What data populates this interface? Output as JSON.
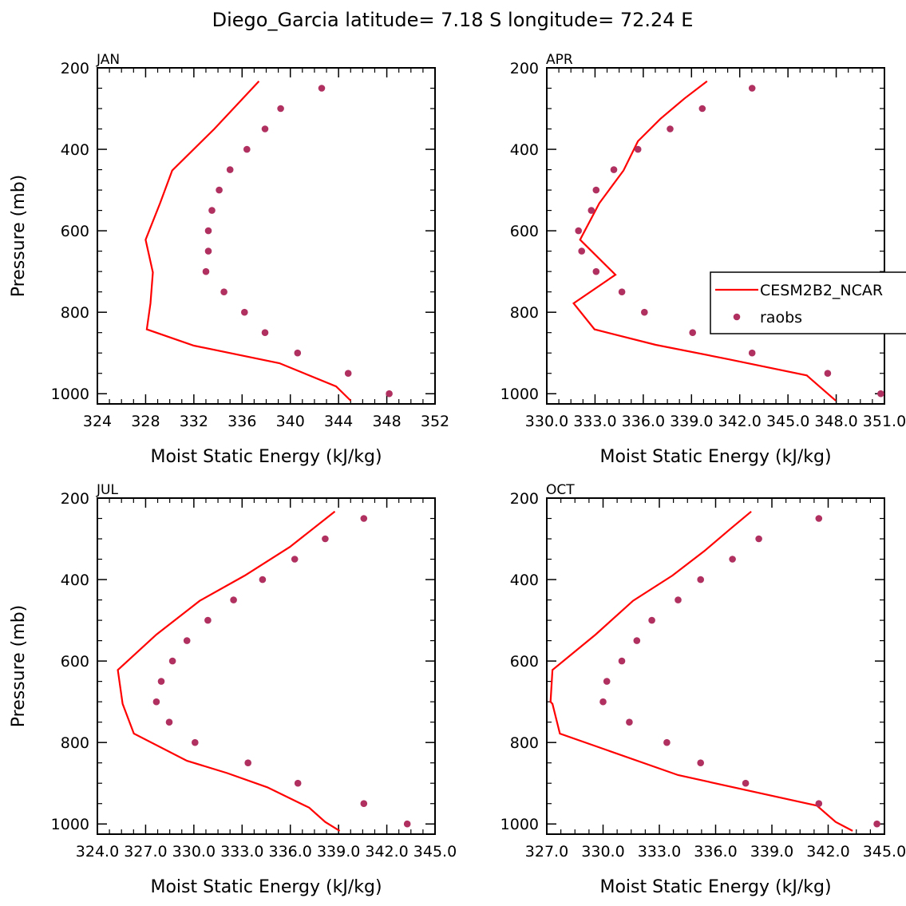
{
  "title": "Diego_Garcia  latitude= 7.18 S longitude= 72.24 E",
  "colors": {
    "model": "#ff0000",
    "obs": "#b03060",
    "axis": "#000000"
  },
  "legend": {
    "placement": "right, mid-height of APR panel",
    "entries": [
      "CESM2B2_NCAR",
      "raobs"
    ]
  },
  "chart_data": [
    {
      "type": "line",
      "panel": "JAN",
      "xlabel": "Moist Static Energy (kJ/kg)",
      "ylabel": "Pressure (mb)",
      "xlim": [
        324,
        352
      ],
      "ylim": [
        200,
        1025
      ],
      "y_inverted": true,
      "xticks": [
        324,
        328,
        332,
        336,
        340,
        344,
        348,
        352
      ],
      "xtick_labels": [
        "324",
        "328",
        "332",
        "336",
        "340",
        "344",
        "348",
        "352"
      ],
      "yticks": [
        200,
        400,
        600,
        800,
        1000
      ],
      "ytick_labels": [
        "200",
        "400",
        "600",
        "800",
        "1000"
      ],
      "series": [
        {
          "name": "CESM2B2_NCAR",
          "kind": "line",
          "x": [
            337.4,
            333.7,
            330.2,
            329.2,
            328.0,
            328.6,
            328.4,
            328.1,
            332.0,
            339.1,
            343.8,
            345.0
          ],
          "y": [
            233,
            350,
            452,
            532,
            622,
            702,
            778,
            842,
            882,
            925,
            982,
            1017
          ]
        },
        {
          "name": "raobs",
          "kind": "scatter",
          "x": [
            342.6,
            339.2,
            337.9,
            336.4,
            335.0,
            334.1,
            333.5,
            333.2,
            333.2,
            333.0,
            334.5,
            336.2,
            337.9,
            340.6,
            344.8,
            348.2
          ],
          "y": [
            250,
            300,
            350,
            400,
            450,
            500,
            550,
            600,
            650,
            700,
            750,
            800,
            850,
            900,
            950,
            1000
          ]
        }
      ]
    },
    {
      "type": "line",
      "panel": "APR",
      "xlabel": "Moist Static Energy (kJ/kg)",
      "ylabel": "",
      "xlim": [
        330.03,
        351.03
      ],
      "ylim": [
        200,
        1025
      ],
      "y_inverted": true,
      "xticks": [
        330.03,
        333.03,
        336.03,
        339.03,
        342.03,
        345.03,
        348.03,
        351.03
      ],
      "xtick_labels": [
        "330.0",
        "333.0",
        "336.0",
        "339.0",
        "342.0",
        "345.0",
        "348.0",
        "351.0"
      ],
      "yticks": [
        200,
        400,
        600,
        800,
        1000
      ],
      "ytick_labels": [
        "200",
        "400",
        "600",
        "800",
        "1000"
      ],
      "series": [
        {
          "name": "CESM2B2_NCAR",
          "kind": "line",
          "x": [
            340.0,
            338.6,
            337.1,
            335.7,
            334.8,
            333.3,
            332.1,
            334.3,
            331.7,
            333.0,
            336.8,
            341.3,
            346.2,
            348.0
          ],
          "y": [
            233,
            275,
            325,
            380,
            452,
            532,
            622,
            708,
            778,
            842,
            880,
            915,
            955,
            1017
          ]
        },
        {
          "name": "raobs",
          "kind": "scatter",
          "x": [
            342.8,
            339.7,
            337.7,
            335.7,
            334.2,
            333.1,
            332.8,
            332.0,
            332.2,
            333.1,
            334.7,
            336.1,
            339.1,
            342.8,
            347.5,
            350.8
          ],
          "y": [
            250,
            300,
            350,
            400,
            450,
            500,
            550,
            600,
            650,
            700,
            750,
            800,
            850,
            900,
            950,
            1000
          ]
        }
      ]
    },
    {
      "type": "line",
      "panel": "JUL",
      "xlabel": "Moist Static Energy (kJ/kg)",
      "ylabel": "Pressure (mb)",
      "xlim": [
        324.03,
        345.03
      ],
      "ylim": [
        200,
        1025
      ],
      "y_inverted": true,
      "xticks": [
        324.03,
        327.03,
        330.03,
        333.03,
        336.03,
        339.03,
        342.03,
        345.03
      ],
      "xtick_labels": [
        "324.0",
        "327.0",
        "330.0",
        "333.0",
        "336.0",
        "339.0",
        "342.0",
        "345.0"
      ],
      "yticks": [
        200,
        400,
        600,
        800,
        1000
      ],
      "ytick_labels": [
        "200",
        "400",
        "600",
        "800",
        "1000"
      ],
      "series": [
        {
          "name": "CESM2B2_NCAR",
          "kind": "line",
          "x": [
            338.8,
            336.0,
            333.2,
            330.4,
            327.7,
            325.3,
            325.6,
            326.3,
            329.6,
            332.1,
            334.6,
            337.2,
            338.2,
            339.1
          ],
          "y": [
            233,
            320,
            390,
            452,
            535,
            622,
            705,
            778,
            845,
            875,
            910,
            960,
            995,
            1017
          ]
        },
        {
          "name": "raobs",
          "kind": "scatter",
          "x": [
            340.6,
            338.2,
            336.3,
            334.3,
            332.5,
            330.9,
            329.6,
            328.7,
            328.0,
            327.7,
            328.5,
            330.1,
            333.4,
            336.5,
            340.6,
            343.3
          ],
          "y": [
            250,
            300,
            350,
            400,
            450,
            500,
            550,
            600,
            650,
            700,
            750,
            800,
            850,
            900,
            950,
            1000
          ]
        }
      ]
    },
    {
      "type": "line",
      "panel": "OCT",
      "xlabel": "Moist Static Energy (kJ/kg)",
      "ylabel": "",
      "xlim": [
        327.0,
        345.0
      ],
      "ylim": [
        200,
        1025
      ],
      "y_inverted": true,
      "xticks": [
        327.0,
        330.0,
        333.0,
        336.0,
        339.0,
        342.0,
        345.0
      ],
      "xtick_labels": [
        "327.0",
        "330.0",
        "333.0",
        "336.0",
        "339.0",
        "342.0",
        "345.0"
      ],
      "yticks": [
        200,
        400,
        600,
        800,
        1000
      ],
      "ytick_labels": [
        "200",
        "400",
        "600",
        "800",
        "1000"
      ],
      "series": [
        {
          "name": "CESM2B2_NCAR",
          "kind": "line",
          "x": [
            337.9,
            336.8,
            335.4,
            333.7,
            331.6,
            329.6,
            327.3,
            327.2,
            327.3,
            327.7,
            334.0,
            341.4,
            342.4,
            343.3
          ],
          "y": [
            233,
            275,
            330,
            390,
            452,
            535,
            622,
            700,
            705,
            778,
            880,
            955,
            995,
            1017
          ]
        },
        {
          "name": "raobs",
          "kind": "scatter",
          "x": [
            341.5,
            338.3,
            336.9,
            335.2,
            334.0,
            332.6,
            331.8,
            331.0,
            330.2,
            330.0,
            331.4,
            333.4,
            335.2,
            337.6,
            341.5,
            344.6
          ],
          "y": [
            250,
            300,
            350,
            400,
            450,
            500,
            550,
            600,
            650,
            700,
            750,
            800,
            850,
            900,
            950,
            1000
          ]
        }
      ]
    }
  ]
}
